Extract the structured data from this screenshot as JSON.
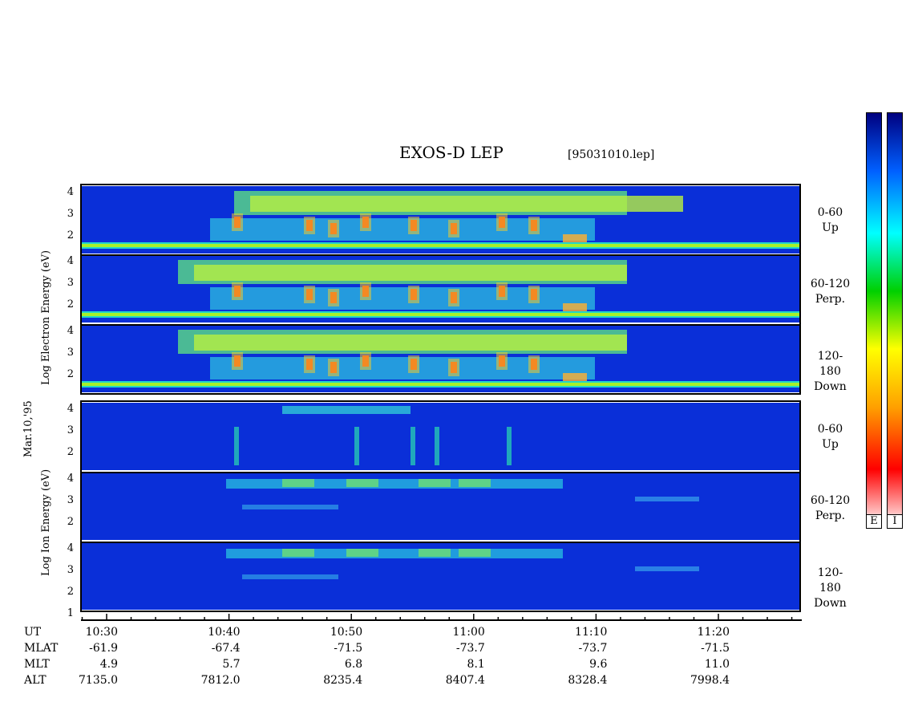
{
  "header": {
    "title": "EXOS-D LEP",
    "file_id": "[95031010.lep]"
  },
  "side_labels": {
    "date": "Mar.10,'95",
    "electron": "Log Electron Energy (eV)",
    "ion": "Log Ion Energy (eV)"
  },
  "panels": [
    {
      "species": "electron",
      "channel_range": "0-60",
      "channel_dir": "Up"
    },
    {
      "species": "electron",
      "channel_range": "60-120",
      "channel_dir": "Perp."
    },
    {
      "species": "electron",
      "channel_range": "120-180",
      "channel_dir": "Down"
    },
    {
      "species": "ion",
      "channel_range": "0-60",
      "channel_dir": "Up"
    },
    {
      "species": "ion",
      "channel_range": "60-120",
      "channel_dir": "Perp."
    },
    {
      "species": "ion",
      "channel_range": "120-180",
      "channel_dir": "Down"
    }
  ],
  "colorbar": {
    "electron_label": "E",
    "ion_label": "I",
    "colors": [
      "#ffffff",
      "#ff0000",
      "#ffa000",
      "#ffff00",
      "#00d000",
      "#00ffff",
      "#0060ff",
      "#000080"
    ]
  },
  "chart_data": {
    "type": "heatmap",
    "title": "EXOS-D LEP",
    "ylabel": "Log Energy (eV)",
    "y_ticks": [
      "4",
      "3",
      "2"
    ],
    "y_ticks_lower": [
      "4",
      "3",
      "2",
      "1"
    ],
    "x_ticks": [
      "10:30",
      "10:40",
      "10:50",
      "11:00",
      "11:10",
      "11:20"
    ],
    "orbit_rows": [
      {
        "name": "UT",
        "values": [
          "10:30",
          "10:40",
          "10:50",
          "11:00",
          "11:10",
          "11:20"
        ]
      },
      {
        "name": "MLAT",
        "values": [
          "-61.9",
          "-67.4",
          "-71.5",
          "-73.7",
          "-73.7",
          "-71.5"
        ]
      },
      {
        "name": "MLT",
        "values": [
          "4.9",
          "5.7",
          "6.8",
          "8.1",
          "9.6",
          "11.0"
        ]
      },
      {
        "name": "ALT",
        "values": [
          "7135.0",
          "7812.0",
          "8235.4",
          "8407.4",
          "8328.4",
          "7998.4"
        ]
      }
    ]
  }
}
